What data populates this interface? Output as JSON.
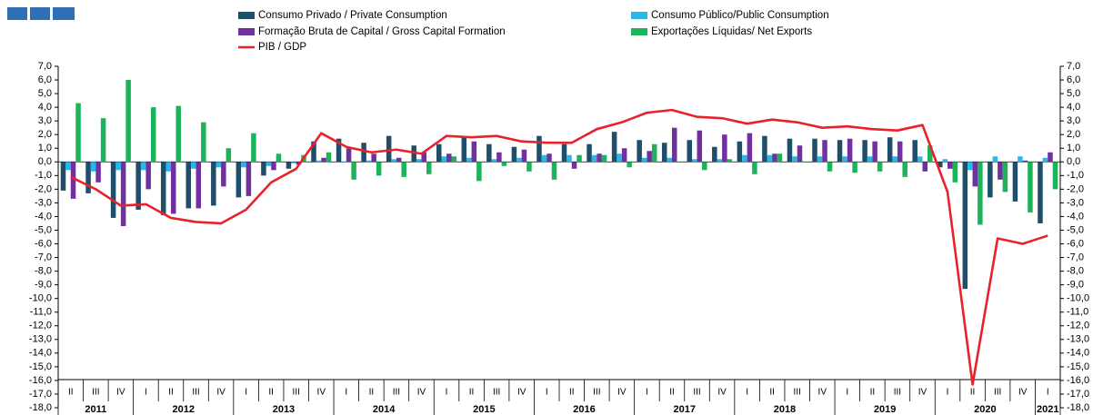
{
  "chart_data": {
    "type": "bar",
    "categories": [
      "II",
      "III",
      "IV",
      "I",
      "II",
      "III",
      "IV",
      "I",
      "II",
      "III",
      "IV",
      "I",
      "II",
      "III",
      "IV",
      "I",
      "II",
      "III",
      "IV",
      "I",
      "II",
      "III",
      "IV",
      "I",
      "II",
      "III",
      "IV",
      "I",
      "II",
      "III",
      "IV",
      "I",
      "II",
      "III",
      "IV",
      "I",
      "II",
      "III",
      "IV",
      "I"
    ],
    "years": [
      "2011",
      "2011",
      "2011",
      "2012",
      "2012",
      "2012",
      "2012",
      "2013",
      "2013",
      "2013",
      "2013",
      "2014",
      "2014",
      "2014",
      "2014",
      "2015",
      "2015",
      "2015",
      "2015",
      "2016",
      "2016",
      "2016",
      "2016",
      "2017",
      "2017",
      "2017",
      "2017",
      "2018",
      "2018",
      "2018",
      "2018",
      "2019",
      "2019",
      "2019",
      "2019",
      "2020",
      "2020",
      "2020",
      "2020",
      "2021"
    ],
    "series": [
      {
        "name": "Consumo Privado / Private Consumption",
        "color": "#1f4e6b",
        "values": [
          -2.1,
          -2.3,
          -4.1,
          -3.5,
          -3.9,
          -3.4,
          -3.2,
          -2.6,
          -1.0,
          -0.5,
          1.5,
          1.7,
          1.4,
          1.9,
          1.2,
          1.3,
          1.8,
          1.3,
          1.1,
          1.9,
          1.3,
          1.3,
          2.2,
          1.6,
          1.4,
          1.6,
          1.1,
          1.5,
          1.9,
          1.7,
          1.7,
          1.6,
          1.6,
          1.8,
          1.6,
          -0.4,
          -9.3,
          -2.6,
          -2.9,
          -4.5
        ]
      },
      {
        "name": "Consumo Público/Public Consumption",
        "color": "#29b6e8",
        "values": [
          -0.6,
          -0.7,
          -0.6,
          -0.6,
          -0.7,
          -0.5,
          -0.4,
          -0.4,
          -0.3,
          -0.1,
          0.1,
          0.0,
          0.1,
          0.2,
          0.2,
          0.4,
          0.3,
          0.2,
          0.3,
          0.5,
          0.5,
          0.5,
          0.6,
          0.3,
          0.3,
          0.2,
          0.2,
          0.5,
          0.5,
          0.4,
          0.4,
          0.4,
          0.4,
          0.4,
          0.4,
          0.2,
          -0.6,
          0.4,
          0.4,
          0.3
        ]
      },
      {
        "name": "Formação Bruta de Capital / Gross Capital Formation",
        "color": "#7030a0",
        "values": [
          -2.7,
          -1.5,
          -4.7,
          -2.0,
          -3.8,
          -3.4,
          -1.8,
          -2.5,
          -0.6,
          -0.2,
          0.3,
          1.0,
          0.6,
          0.3,
          0.7,
          0.6,
          1.5,
          0.7,
          0.9,
          0.6,
          -0.5,
          0.6,
          1.0,
          0.8,
          2.5,
          2.3,
          2.0,
          2.1,
          0.6,
          1.2,
          1.6,
          1.7,
          1.5,
          1.5,
          -0.7,
          -0.5,
          -1.8,
          -1.3,
          0.1,
          0.7
        ]
      },
      {
        "name": "Exportações Líquidas/ Net Exports",
        "color": "#1db35a",
        "values": [
          4.3,
          3.2,
          6.0,
          4.0,
          4.1,
          2.9,
          1.0,
          2.1,
          0.6,
          0.5,
          0.7,
          -1.3,
          -1.0,
          -1.1,
          -0.9,
          0.4,
          -1.4,
          -0.3,
          -0.7,
          -1.3,
          0.5,
          0.5,
          -0.4,
          1.3,
          0.0,
          -0.6,
          0.2,
          -0.9,
          0.6,
          0.0,
          -0.7,
          -0.8,
          -0.7,
          -1.1,
          1.2,
          -1.5,
          -4.6,
          -2.2,
          -3.7,
          -2.0
        ]
      },
      {
        "name": "PIB / GDP",
        "color": "#e8222a",
        "type": "line",
        "values": [
          -1.1,
          -2.0,
          -3.2,
          -3.1,
          -4.1,
          -4.4,
          -4.5,
          -3.5,
          -1.5,
          -0.5,
          2.1,
          1.1,
          0.7,
          0.9,
          0.6,
          1.9,
          1.8,
          1.9,
          1.5,
          1.4,
          1.4,
          2.4,
          2.9,
          3.6,
          3.8,
          3.3,
          3.2,
          2.8,
          3.1,
          2.9,
          2.5,
          2.6,
          2.4,
          2.3,
          2.7,
          -2.2,
          -16.3,
          -5.6,
          -6.0,
          -5.4
        ]
      }
    ],
    "ylim": [
      -18,
      7
    ],
    "yticks": [
      {
        "value": 7,
        "label": "7,0"
      },
      {
        "value": 6,
        "label": "6,0"
      },
      {
        "value": 5,
        "label": "5,0"
      },
      {
        "value": 4,
        "label": "4,0"
      },
      {
        "value": 3,
        "label": "3,0"
      },
      {
        "value": 2,
        "label": "2,0"
      },
      {
        "value": 1,
        "label": "1,0"
      },
      {
        "value": 0,
        "label": "0,0"
      },
      {
        "value": -1,
        "label": "-1,0"
      },
      {
        "value": -2,
        "label": "-2,0"
      },
      {
        "value": -3,
        "label": "-3,0"
      },
      {
        "value": -4,
        "label": "-4,0"
      },
      {
        "value": -5,
        "label": "-5,0"
      },
      {
        "value": -6,
        "label": "-6,0"
      },
      {
        "value": -7,
        "label": "-7,0"
      },
      {
        "value": -8,
        "label": "-8,0"
      },
      {
        "value": -9,
        "label": "-9,0"
      },
      {
        "value": -10,
        "label": "-10,0"
      },
      {
        "value": -11,
        "label": "-11,0"
      },
      {
        "value": -12,
        "label": "-12,0"
      },
      {
        "value": -13,
        "label": "-13,0"
      },
      {
        "value": -14,
        "label": "-14,0"
      },
      {
        "value": -15,
        "label": "-15,0"
      },
      {
        "value": -16,
        "label": "-16,0"
      },
      {
        "value": -17,
        "label": "-17,0"
      },
      {
        "value": -18,
        "label": "-18,0"
      }
    ],
    "grid": false
  }
}
